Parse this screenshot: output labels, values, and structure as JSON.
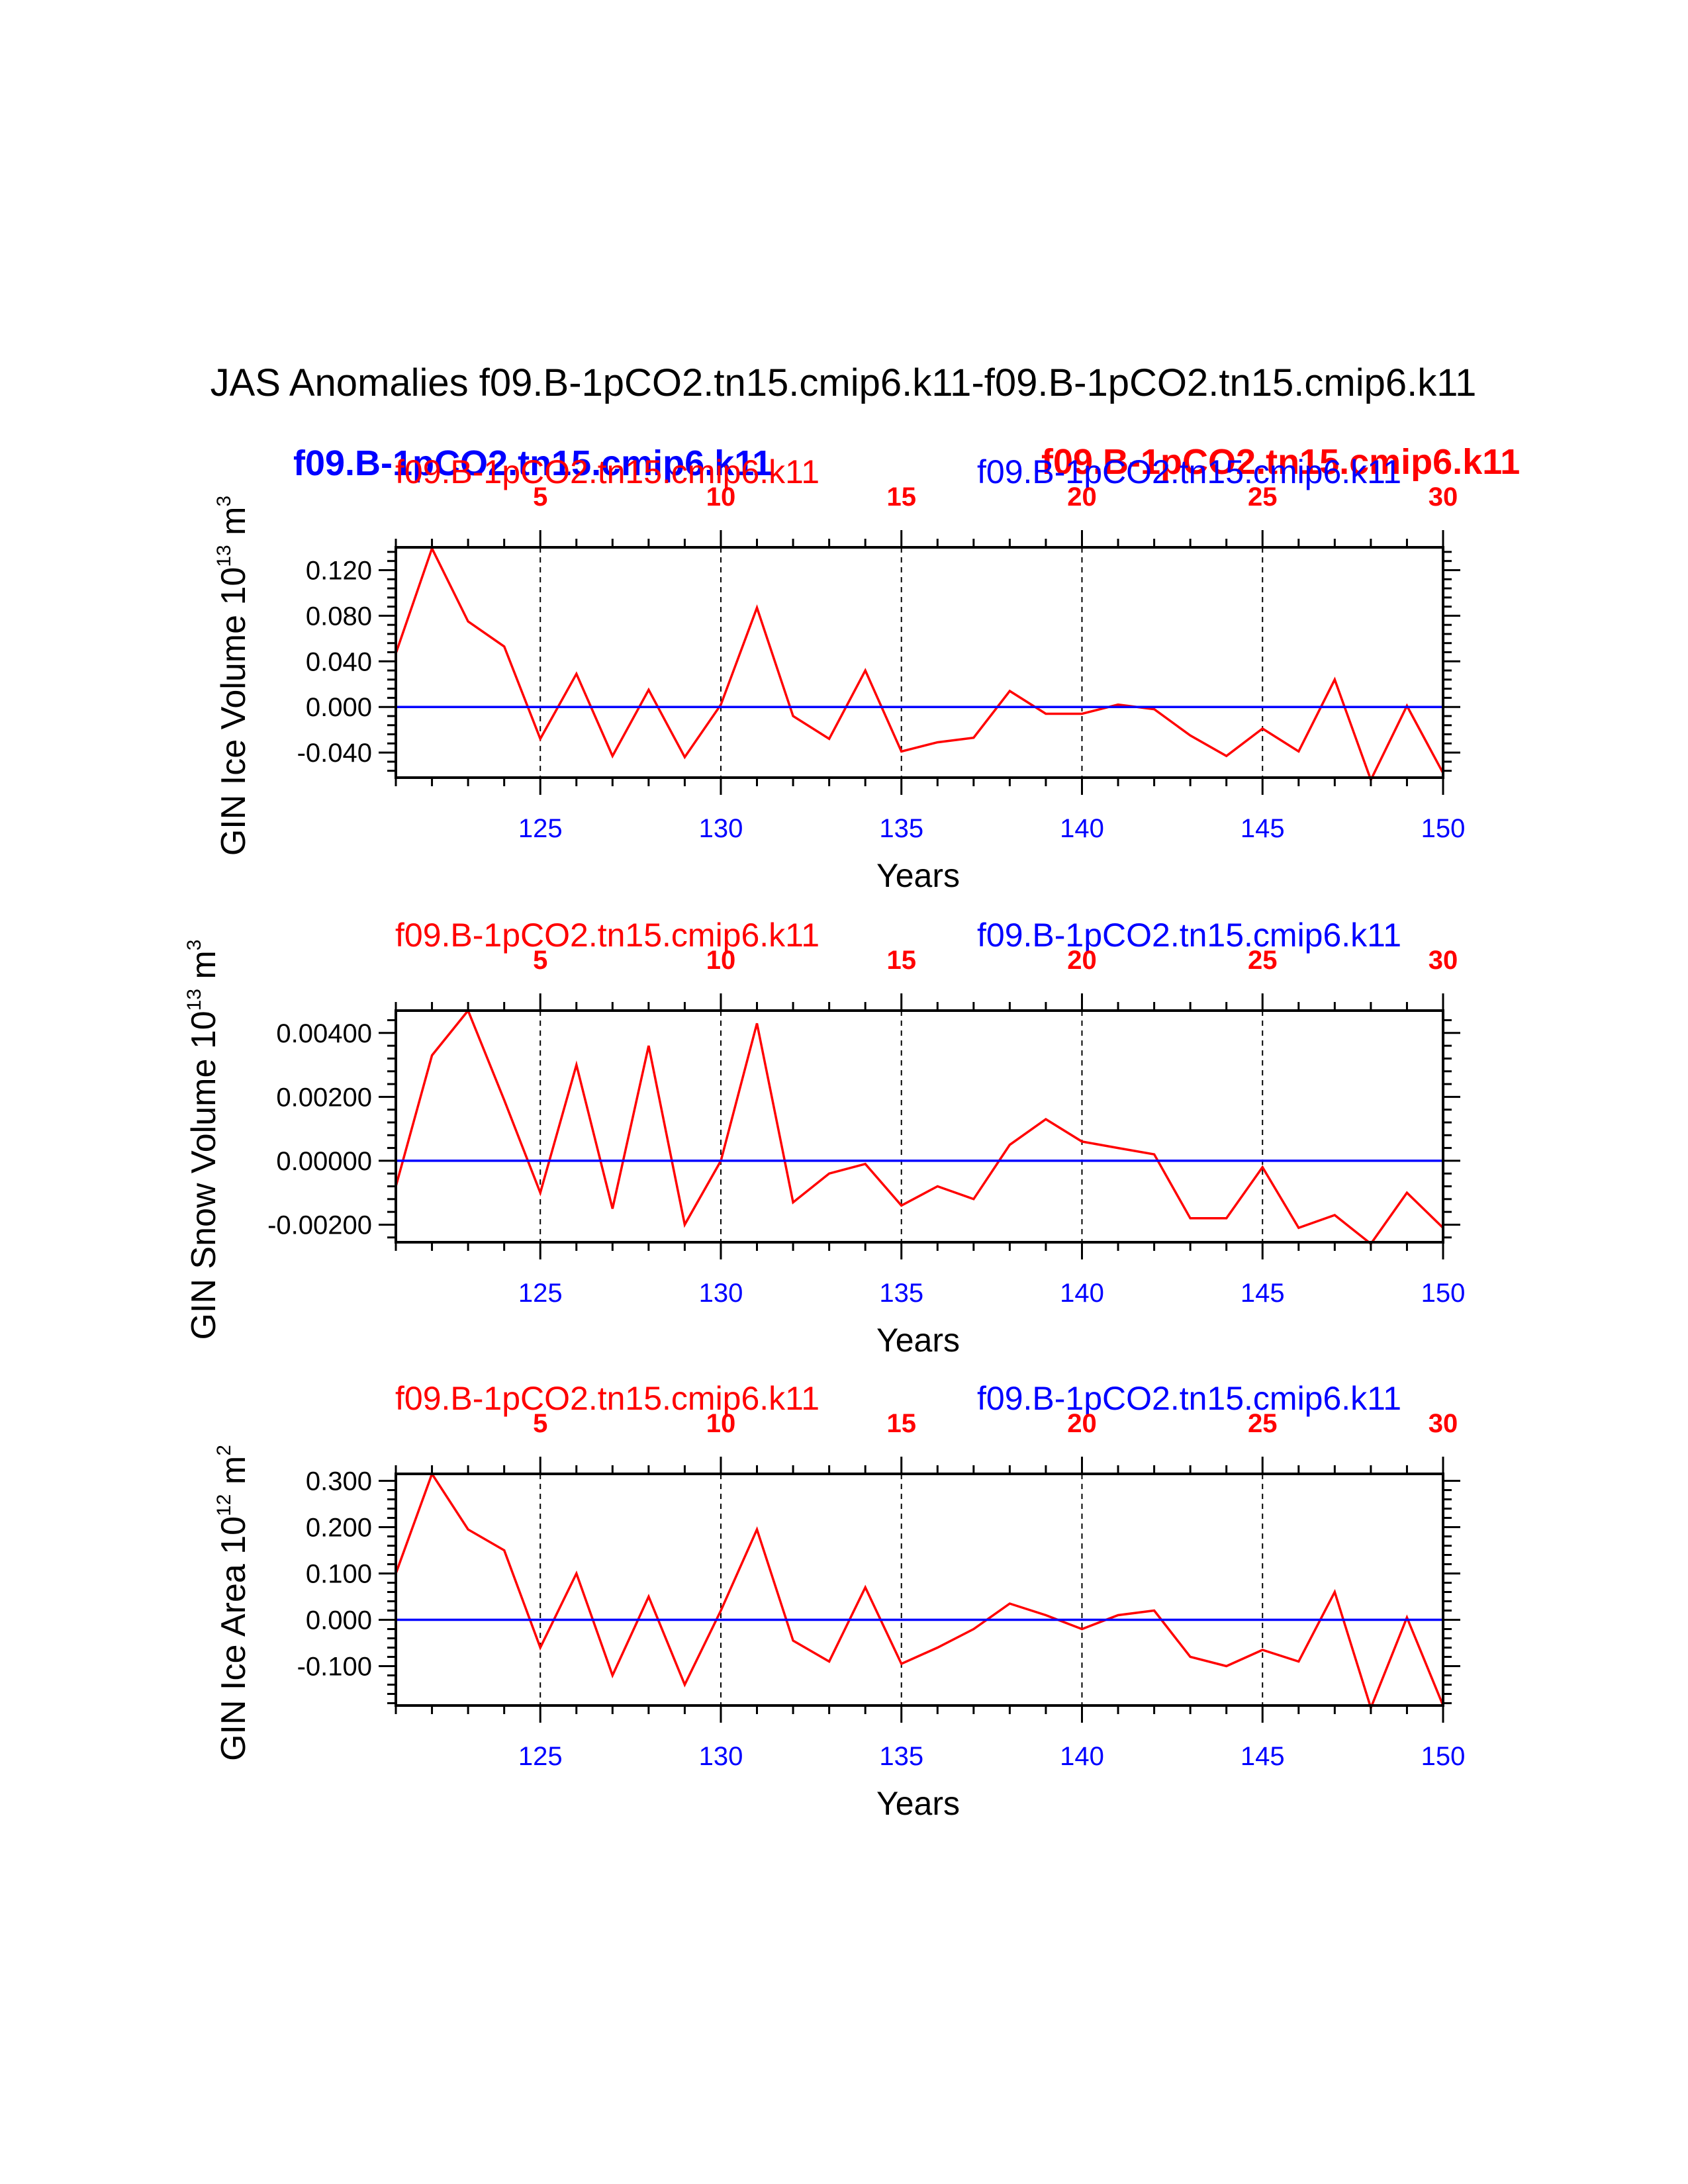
{
  "figure_title": "JAS Anomalies f09.B-1pCO2.tn15.cmip6.k11-f09.B-1pCO2.tn15.cmip6.k11",
  "legend_bold": {
    "left": "f09.B-1pCO2.tn15.cmip6.k11",
    "right": "f09.B-1pCO2.tn15.cmip6.k11",
    "left_color": "#0000ff",
    "right_color": "#ff0000"
  },
  "colors": {
    "case1": "#ff0000",
    "case2": "#0000ff",
    "axis": "#000000"
  },
  "chart_data": [
    {
      "type": "line",
      "ylabel": "GIN Ice Volume 10",
      "ylabel_exp": "13",
      "ylabel_unit": " m",
      "ylabel_unit_exp": "3",
      "xlabel": "Years",
      "case1_label": "f09.B-1pCO2.tn15.cmip6.k11",
      "case2_label": "f09.B-1pCO2.tn15.cmip6.k11",
      "xlim": [
        121,
        150
      ],
      "ylim": [
        -0.062,
        0.14
      ],
      "yticks": [
        -0.04,
        0.0,
        0.04,
        0.08,
        0.12
      ],
      "yticklabels": [
        "-0.040",
        "0.000",
        "0.040",
        "0.080",
        "0.120"
      ],
      "bottom_ticks": [
        125,
        130,
        135,
        140,
        145,
        150
      ],
      "bottom_ticklabels": [
        "125",
        "130",
        "135",
        "140",
        "145",
        "150"
      ],
      "top_ticklabels": [
        "5",
        "10",
        "15",
        "20",
        "25",
        "30"
      ],
      "series": [
        {
          "name": "f09.B-1pCO2.tn15.cmip6.k11",
          "color": "#ff0000",
          "x": [
            121,
            122,
            123,
            124,
            125,
            126,
            127,
            128,
            129,
            130,
            131,
            132,
            133,
            134,
            135,
            136,
            137,
            138,
            139,
            140,
            141,
            142,
            143,
            144,
            145,
            146,
            147,
            148,
            149,
            150
          ],
          "values": [
            0.047,
            0.139,
            0.075,
            0.053,
            -0.028,
            0.029,
            -0.043,
            0.015,
            -0.044,
            0.002,
            0.087,
            -0.008,
            -0.028,
            0.032,
            -0.039,
            -0.031,
            -0.027,
            0.014,
            -0.006,
            -0.006,
            0.002,
            -0.002,
            -0.025,
            -0.043,
            -0.019,
            -0.039,
            0.024,
            -0.064,
            0.001,
            -0.058
          ]
        },
        {
          "name": "f09.B-1pCO2.tn15.cmip6.k11",
          "color": "#0000ff",
          "x": [
            121,
            150
          ],
          "values": [
            0.0,
            0.0
          ]
        }
      ]
    },
    {
      "type": "line",
      "ylabel": "GIN Snow Volume 10",
      "ylabel_exp": "13",
      "ylabel_unit": " m",
      "ylabel_unit_exp": "3",
      "xlabel": "Years",
      "case1_label": "f09.B-1pCO2.tn15.cmip6.k11",
      "case2_label": "f09.B-1pCO2.tn15.cmip6.k11",
      "xlim": [
        121,
        150
      ],
      "ylim": [
        -0.00255,
        0.0047
      ],
      "yticks": [
        -0.002,
        0.0,
        0.002,
        0.004
      ],
      "yticklabels": [
        "-0.00200",
        "0.00000",
        "0.00200",
        "0.00400"
      ],
      "bottom_ticks": [
        125,
        130,
        135,
        140,
        145,
        150
      ],
      "bottom_ticklabels": [
        "125",
        "130",
        "135",
        "140",
        "145",
        "150"
      ],
      "top_ticklabels": [
        "5",
        "10",
        "15",
        "20",
        "25",
        "30"
      ],
      "series": [
        {
          "name": "f09.B-1pCO2.tn15.cmip6.k11",
          "color": "#ff0000",
          "x": [
            121,
            122,
            123,
            124,
            125,
            126,
            127,
            128,
            129,
            130,
            131,
            132,
            133,
            134,
            135,
            136,
            137,
            138,
            139,
            140,
            141,
            142,
            143,
            144,
            145,
            146,
            147,
            148,
            149,
            150
          ],
          "values": [
            -0.0008,
            0.0033,
            0.0047,
            0.0019,
            -0.001,
            0.003,
            -0.0015,
            0.0036,
            -0.002,
            0.0,
            0.0043,
            -0.0013,
            -0.0004,
            -0.0001,
            -0.0014,
            -0.0008,
            -0.0012,
            0.0005,
            0.0013,
            0.0006,
            0.0004,
            0.0002,
            -0.0018,
            -0.0018,
            -0.0002,
            -0.0021,
            -0.0017,
            -0.0026,
            -0.001,
            -0.0021
          ]
        },
        {
          "name": "f09.B-1pCO2.tn15.cmip6.k11",
          "color": "#0000ff",
          "x": [
            121,
            150
          ],
          "values": [
            0.0,
            0.0
          ]
        }
      ]
    },
    {
      "type": "line",
      "ylabel": "GIN Ice Area 10",
      "ylabel_exp": "12",
      "ylabel_unit": " m",
      "ylabel_unit_exp": "2",
      "xlabel": "Years",
      "case1_label": "f09.B-1pCO2.tn15.cmip6.k11",
      "case2_label": "f09.B-1pCO2.tn15.cmip6.k11",
      "xlim": [
        121,
        150
      ],
      "ylim": [
        -0.185,
        0.315
      ],
      "yticks": [
        -0.1,
        0.0,
        0.1,
        0.2,
        0.3
      ],
      "yticklabels": [
        "-0.100",
        "0.000",
        "0.100",
        "0.200",
        "0.300"
      ],
      "bottom_ticks": [
        125,
        130,
        135,
        140,
        145,
        150
      ],
      "bottom_ticklabels": [
        "125",
        "130",
        "135",
        "140",
        "145",
        "150"
      ],
      "top_ticklabels": [
        "5",
        "10",
        "15",
        "20",
        "25",
        "30"
      ],
      "series": [
        {
          "name": "f09.B-1pCO2.tn15.cmip6.k11",
          "color": "#ff0000",
          "x": [
            121,
            122,
            123,
            124,
            125,
            126,
            127,
            128,
            129,
            130,
            131,
            132,
            133,
            134,
            135,
            136,
            137,
            138,
            139,
            140,
            141,
            142,
            143,
            144,
            145,
            146,
            147,
            148,
            149,
            150
          ],
          "values": [
            0.1,
            0.315,
            0.195,
            0.15,
            -0.06,
            0.1,
            -0.12,
            0.05,
            -0.14,
            0.02,
            0.195,
            -0.045,
            -0.09,
            0.07,
            -0.095,
            -0.06,
            -0.02,
            0.035,
            0.01,
            -0.02,
            0.01,
            0.02,
            -0.08,
            -0.1,
            -0.065,
            -0.09,
            0.06,
            -0.19,
            0.005,
            -0.185
          ]
        },
        {
          "name": "f09.B-1pCO2.tn15.cmip6.k11",
          "color": "#0000ff",
          "x": [
            121,
            150
          ],
          "values": [
            0.0,
            0.0
          ]
        }
      ]
    }
  ]
}
